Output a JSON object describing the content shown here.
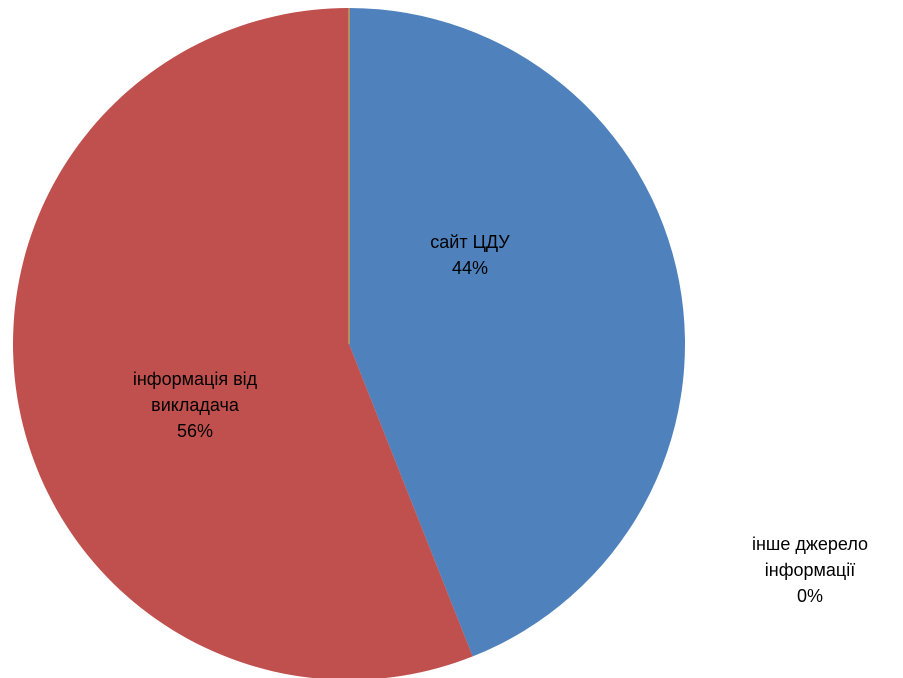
{
  "chart_data": {
    "type": "pie",
    "categories": [
      "сайт ЦДУ",
      "інформація від викладача",
      "інше джерело інформації"
    ],
    "values": [
      44,
      56,
      0
    ],
    "value_labels": [
      "44%",
      "56%",
      "0%"
    ],
    "colors": [
      "#4f81bd",
      "#c0504d",
      "#d4a84b"
    ]
  }
}
